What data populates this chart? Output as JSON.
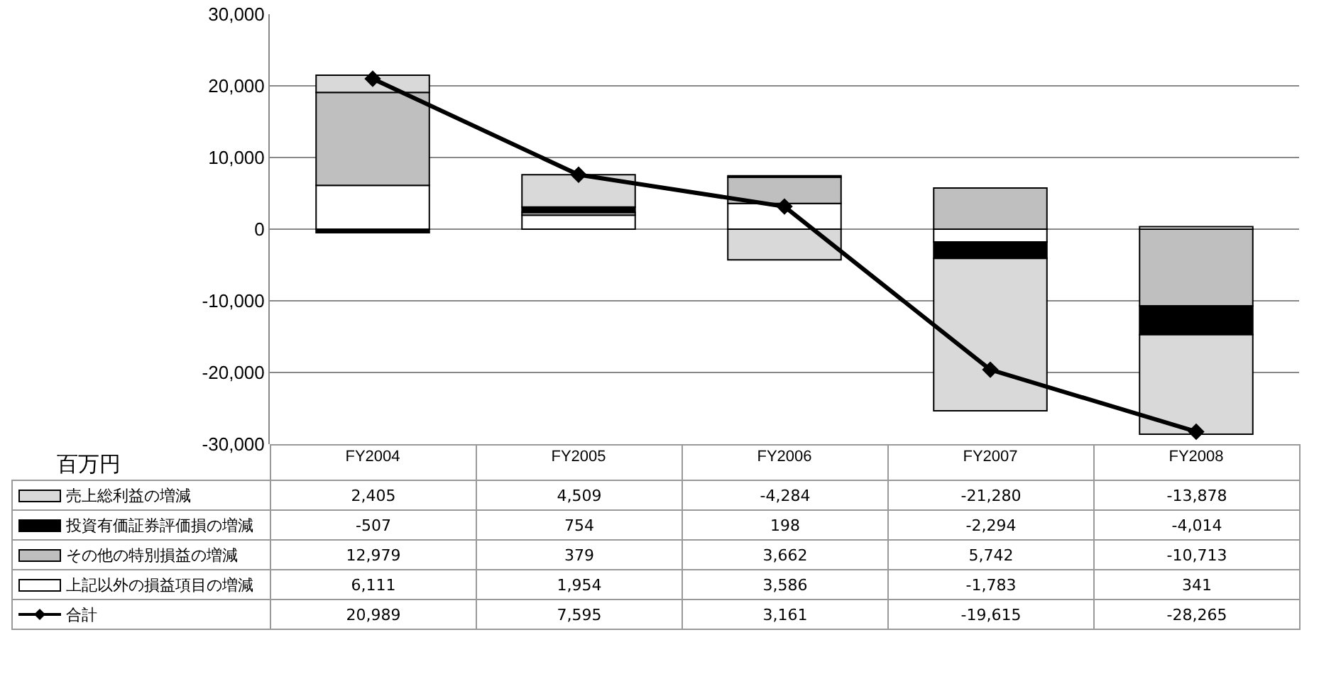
{
  "chart_data": {
    "type": "bar",
    "stacked": true,
    "ylabel": "百万円",
    "categories": [
      "FY2004",
      "FY2005",
      "FY2006",
      "FY2007",
      "FY2008"
    ],
    "series": [
      {
        "name": "上記以外の損益項目の増減",
        "color": "#ffffff",
        "values": [
          6111,
          1954,
          3586,
          -1783,
          341
        ],
        "value_labels": [
          "6,111",
          "1,954",
          "3,586",
          "-1,783",
          "341"
        ]
      },
      {
        "name": "その他の特別損益の増減",
        "color": "#bfbfbf",
        "values": [
          12979,
          379,
          3662,
          5742,
          -10713
        ],
        "value_labels": [
          "12,979",
          "379",
          "3,662",
          "5,742",
          "-10,713"
        ]
      },
      {
        "name": "投資有価証券評価損の増減",
        "color": "#000000",
        "values": [
          -507,
          754,
          198,
          -2294,
          -4014
        ],
        "value_labels": [
          "-507",
          "754",
          "198",
          "-2,294",
          "-4,014"
        ]
      },
      {
        "name": "売上総利益の増減",
        "color": "#d9d9d9",
        "values": [
          2405,
          4509,
          -4284,
          -21280,
          -13878
        ],
        "value_labels": [
          "2,405",
          "4,509",
          "-4,284",
          "-21,280",
          "-13,878"
        ]
      },
      {
        "name": "合計",
        "type": "line",
        "color": "#000000",
        "marker": "diamond",
        "values": [
          20989,
          7595,
          3161,
          -19615,
          -28265
        ],
        "value_labels": [
          "20,989",
          "7,595",
          "3,161",
          "-19,615",
          "-28,265"
        ]
      }
    ],
    "ylim": [
      -30000,
      30000
    ],
    "yticks": [
      {
        "value": -30000,
        "label": "-30,000"
      },
      {
        "value": -20000,
        "label": "-20,000"
      },
      {
        "value": -10000,
        "label": "-10,000"
      },
      0,
      {
        "value": 10000,
        "label": "10,000"
      },
      {
        "value": 20000,
        "label": "20,000"
      },
      {
        "value": 30000,
        "label": "30,000"
      }
    ],
    "grid": "y",
    "legend": "bottom"
  }
}
